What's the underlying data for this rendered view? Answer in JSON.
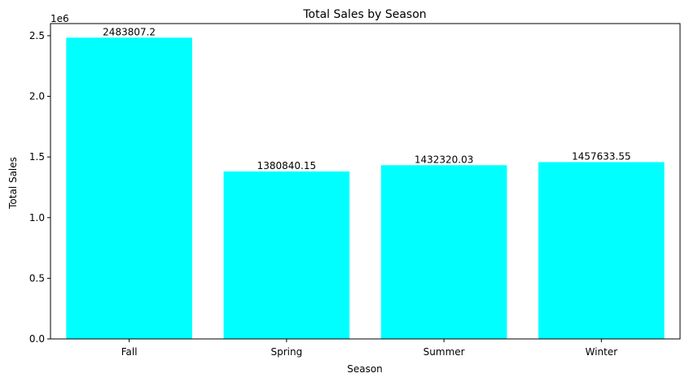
{
  "chart_data": {
    "type": "bar",
    "title": "Total Sales by Season",
    "xlabel": "Season",
    "ylabel": "Total Sales",
    "offset_label": "1e6",
    "categories": [
      "Fall",
      "Spring",
      "Summer",
      "Winter"
    ],
    "values": [
      2483807.2,
      1380840.15,
      1432320.03,
      1457633.55
    ],
    "value_labels": [
      "2483807.2",
      "1380840.15",
      "1432320.03",
      "1457633.55"
    ],
    "ylim": [
      0,
      2600000
    ],
    "yticks": [
      0,
      500000,
      1000000,
      1500000,
      2000000,
      2500000
    ],
    "ytick_labels": [
      "0.0",
      "0.5",
      "1.0",
      "1.5",
      "2.0",
      "2.5"
    ],
    "grid": false,
    "bar_color": "#00ffff"
  }
}
